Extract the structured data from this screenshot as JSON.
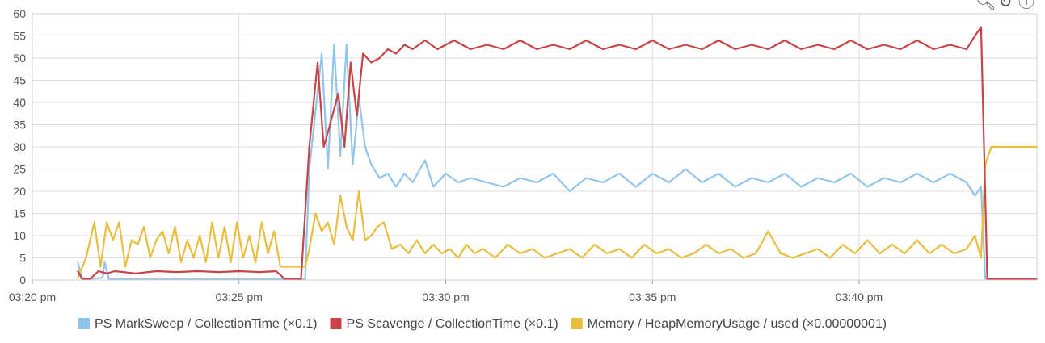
{
  "toolbar": {
    "icons": [
      "zoom-icon",
      "reset-icon",
      "info-icon"
    ]
  },
  "chart_data": {
    "type": "line",
    "title": "",
    "xlabel": "",
    "ylabel": "",
    "ylim": [
      0,
      60
    ],
    "yticks": [
      "0",
      "5",
      "10",
      "15",
      "20",
      "25",
      "30",
      "35",
      "40",
      "45",
      "50",
      "55",
      "60"
    ],
    "xticks": [
      "03:20 pm",
      "03:25 pm",
      "03:30 pm",
      "03:35 pm",
      "03:40 pm"
    ],
    "xlim_minutes": [
      0,
      24.3
    ],
    "grid": true,
    "legend_position": "bottom",
    "series": [
      {
        "name": "PS MarkSweep / CollectionTime (×0.1)",
        "color": "#92c5eb",
        "points": [
          [
            1.1,
            4
          ],
          [
            1.2,
            0.5
          ],
          [
            1.4,
            0.3
          ],
          [
            1.7,
            0.5
          ],
          [
            1.75,
            4
          ],
          [
            1.85,
            0.3
          ],
          [
            2.5,
            0.2
          ],
          [
            4,
            0.2
          ],
          [
            5,
            0.2
          ],
          [
            5.5,
            0.2
          ],
          [
            6,
            0.2
          ],
          [
            6.6,
            0.2
          ],
          [
            6.7,
            25
          ],
          [
            7.0,
            51
          ],
          [
            7.15,
            25
          ],
          [
            7.3,
            53
          ],
          [
            7.45,
            28
          ],
          [
            7.6,
            53
          ],
          [
            7.75,
            26
          ],
          [
            7.9,
            41
          ],
          [
            8.05,
            30
          ],
          [
            8.2,
            26
          ],
          [
            8.4,
            23
          ],
          [
            8.6,
            24
          ],
          [
            8.8,
            21
          ],
          [
            9.0,
            24
          ],
          [
            9.2,
            22
          ],
          [
            9.5,
            27
          ],
          [
            9.7,
            21
          ],
          [
            10.0,
            24
          ],
          [
            10.3,
            22
          ],
          [
            10.6,
            23
          ],
          [
            11.0,
            22
          ],
          [
            11.4,
            21
          ],
          [
            11.8,
            23
          ],
          [
            12.2,
            22
          ],
          [
            12.6,
            24
          ],
          [
            13.0,
            20
          ],
          [
            13.4,
            23
          ],
          [
            13.8,
            22
          ],
          [
            14.2,
            24
          ],
          [
            14.6,
            21
          ],
          [
            15.0,
            24
          ],
          [
            15.4,
            22
          ],
          [
            15.8,
            25
          ],
          [
            16.2,
            22
          ],
          [
            16.6,
            24
          ],
          [
            17.0,
            21
          ],
          [
            17.4,
            23
          ],
          [
            17.8,
            22
          ],
          [
            18.2,
            24
          ],
          [
            18.6,
            21
          ],
          [
            19.0,
            23
          ],
          [
            19.4,
            22
          ],
          [
            19.8,
            24
          ],
          [
            20.2,
            21
          ],
          [
            20.6,
            23
          ],
          [
            21.0,
            22
          ],
          [
            21.4,
            24
          ],
          [
            21.8,
            22
          ],
          [
            22.2,
            24
          ],
          [
            22.6,
            22
          ],
          [
            22.8,
            19
          ],
          [
            22.95,
            21
          ],
          [
            23.05,
            0.3
          ],
          [
            24.3,
            0.3
          ]
        ]
      },
      {
        "name": "PS Scavenge / CollectionTime (×0.1)",
        "color": "#c84447",
        "points": [
          [
            1.1,
            2
          ],
          [
            1.2,
            0.3
          ],
          [
            1.4,
            0.3
          ],
          [
            1.6,
            2
          ],
          [
            1.8,
            1.5
          ],
          [
            2,
            2
          ],
          [
            2.5,
            1.5
          ],
          [
            3,
            2
          ],
          [
            3.5,
            1.8
          ],
          [
            4,
            2
          ],
          [
            4.5,
            1.8
          ],
          [
            5,
            2
          ],
          [
            5.5,
            1.8
          ],
          [
            5.9,
            2
          ],
          [
            6.1,
            0.3
          ],
          [
            6.5,
            0.3
          ],
          [
            6.7,
            30
          ],
          [
            6.9,
            49
          ],
          [
            7.05,
            30
          ],
          [
            7.2,
            35
          ],
          [
            7.4,
            42
          ],
          [
            7.55,
            30
          ],
          [
            7.7,
            49
          ],
          [
            7.85,
            37
          ],
          [
            8.0,
            51
          ],
          [
            8.2,
            49
          ],
          [
            8.4,
            50
          ],
          [
            8.6,
            52
          ],
          [
            8.8,
            51
          ],
          [
            9.0,
            53
          ],
          [
            9.2,
            52
          ],
          [
            9.5,
            54
          ],
          [
            9.8,
            52
          ],
          [
            10.2,
            54
          ],
          [
            10.6,
            52
          ],
          [
            11.0,
            53
          ],
          [
            11.4,
            52
          ],
          [
            11.8,
            54
          ],
          [
            12.2,
            52
          ],
          [
            12.6,
            53
          ],
          [
            13.0,
            52
          ],
          [
            13.4,
            54
          ],
          [
            13.8,
            52
          ],
          [
            14.2,
            53
          ],
          [
            14.6,
            52
          ],
          [
            15.0,
            54
          ],
          [
            15.4,
            52
          ],
          [
            15.8,
            53
          ],
          [
            16.2,
            52
          ],
          [
            16.6,
            54
          ],
          [
            17.0,
            52
          ],
          [
            17.4,
            53
          ],
          [
            17.8,
            52
          ],
          [
            18.2,
            54
          ],
          [
            18.6,
            52
          ],
          [
            19.0,
            53
          ],
          [
            19.4,
            52
          ],
          [
            19.8,
            54
          ],
          [
            20.2,
            52
          ],
          [
            20.6,
            53
          ],
          [
            21.0,
            52
          ],
          [
            21.4,
            54
          ],
          [
            21.8,
            52
          ],
          [
            22.2,
            53
          ],
          [
            22.6,
            52
          ],
          [
            22.8,
            55
          ],
          [
            22.95,
            57
          ],
          [
            23.1,
            0.3
          ],
          [
            24.3,
            0.3
          ]
        ]
      },
      {
        "name": "Memory / HeapMemoryUsage / used (×0.00000001)",
        "color": "#e8be3f",
        "points": [
          [
            1.1,
            0.5
          ],
          [
            1.3,
            5
          ],
          [
            1.5,
            13
          ],
          [
            1.65,
            3
          ],
          [
            1.8,
            13
          ],
          [
            1.95,
            9
          ],
          [
            2.1,
            13
          ],
          [
            2.25,
            3
          ],
          [
            2.4,
            9
          ],
          [
            2.55,
            8
          ],
          [
            2.7,
            12
          ],
          [
            2.85,
            5
          ],
          [
            3.0,
            9
          ],
          [
            3.15,
            11
          ],
          [
            3.3,
            6
          ],
          [
            3.45,
            12
          ],
          [
            3.6,
            4
          ],
          [
            3.75,
            9
          ],
          [
            3.9,
            5
          ],
          [
            4.05,
            10
          ],
          [
            4.2,
            4
          ],
          [
            4.35,
            13
          ],
          [
            4.5,
            5
          ],
          [
            4.65,
            12
          ],
          [
            4.8,
            4
          ],
          [
            4.95,
            13
          ],
          [
            5.1,
            5
          ],
          [
            5.25,
            10
          ],
          [
            5.4,
            4
          ],
          [
            5.55,
            13
          ],
          [
            5.7,
            6
          ],
          [
            5.85,
            11
          ],
          [
            6.0,
            3
          ],
          [
            6.6,
            3
          ],
          [
            6.7,
            7
          ],
          [
            6.85,
            15
          ],
          [
            7.0,
            11
          ],
          [
            7.15,
            13
          ],
          [
            7.3,
            8
          ],
          [
            7.45,
            19
          ],
          [
            7.6,
            12
          ],
          [
            7.75,
            9
          ],
          [
            7.9,
            20
          ],
          [
            8.05,
            9
          ],
          [
            8.2,
            10
          ],
          [
            8.35,
            12
          ],
          [
            8.5,
            13
          ],
          [
            8.7,
            7
          ],
          [
            8.9,
            8
          ],
          [
            9.1,
            6
          ],
          [
            9.3,
            9
          ],
          [
            9.5,
            6
          ],
          [
            9.7,
            8
          ],
          [
            9.9,
            6
          ],
          [
            10.1,
            7
          ],
          [
            10.3,
            5
          ],
          [
            10.5,
            8
          ],
          [
            10.7,
            6
          ],
          [
            10.9,
            7
          ],
          [
            11.2,
            5
          ],
          [
            11.5,
            8
          ],
          [
            11.8,
            6
          ],
          [
            12.1,
            7
          ],
          [
            12.4,
            5
          ],
          [
            12.7,
            6
          ],
          [
            13.0,
            7
          ],
          [
            13.3,
            5
          ],
          [
            13.6,
            8
          ],
          [
            13.9,
            6
          ],
          [
            14.2,
            7
          ],
          [
            14.5,
            5
          ],
          [
            14.8,
            8
          ],
          [
            15.1,
            6
          ],
          [
            15.4,
            7
          ],
          [
            15.7,
            5
          ],
          [
            16.0,
            6
          ],
          [
            16.3,
            8
          ],
          [
            16.6,
            6
          ],
          [
            16.9,
            7
          ],
          [
            17.2,
            5
          ],
          [
            17.5,
            6
          ],
          [
            17.8,
            11
          ],
          [
            18.1,
            6
          ],
          [
            18.4,
            5
          ],
          [
            18.7,
            6
          ],
          [
            19.0,
            7
          ],
          [
            19.3,
            5
          ],
          [
            19.6,
            8
          ],
          [
            19.9,
            6
          ],
          [
            20.2,
            9
          ],
          [
            20.5,
            6
          ],
          [
            20.8,
            8
          ],
          [
            21.1,
            6
          ],
          [
            21.4,
            9
          ],
          [
            21.7,
            6
          ],
          [
            22.0,
            8
          ],
          [
            22.3,
            6
          ],
          [
            22.6,
            7
          ],
          [
            22.8,
            10
          ],
          [
            22.95,
            5
          ],
          [
            23.05,
            26
          ],
          [
            23.2,
            30
          ],
          [
            24.3,
            30
          ]
        ]
      }
    ]
  }
}
